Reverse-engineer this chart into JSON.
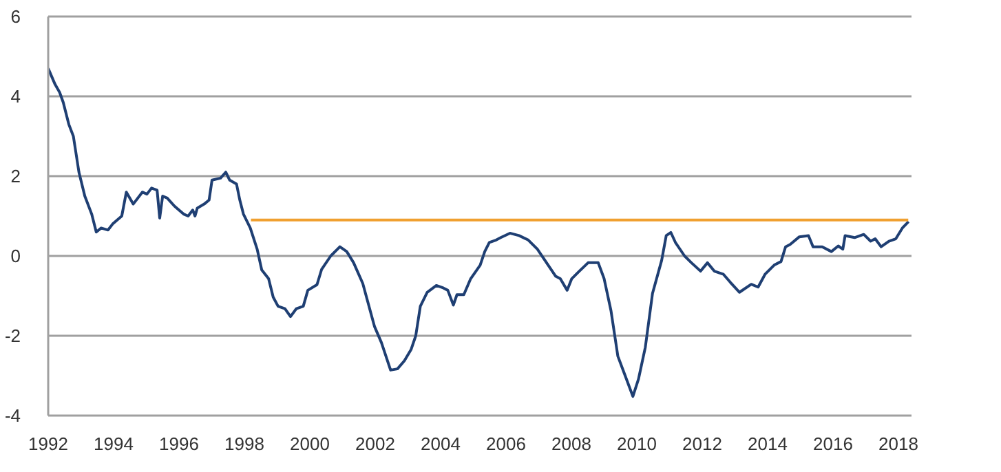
{
  "chart_data": {
    "type": "line",
    "xlim": [
      1992,
      2018.4
    ],
    "xticks": [
      1992,
      1994,
      1996,
      1998,
      2000,
      2002,
      2004,
      2006,
      2008,
      2010,
      2012,
      2014,
      2016,
      2018
    ],
    "ylim": [
      -4,
      6
    ],
    "yticks": [
      -4,
      -2,
      0,
      2,
      4,
      6
    ],
    "grid": "y",
    "marker": "none",
    "line_style": "solid",
    "series": [
      {
        "color": "#1f3f73",
        "x": [
          1992.0,
          1992.21,
          1992.35,
          1992.46,
          1992.63,
          1992.77,
          1992.94,
          1993.12,
          1993.33,
          1993.47,
          1993.62,
          1993.83,
          1993.97,
          1994.25,
          1994.39,
          1994.6,
          1994.88,
          1995.02,
          1995.16,
          1995.33,
          1995.41,
          1995.5,
          1995.64,
          1995.86,
          1996.14,
          1996.28,
          1996.42,
          1996.49,
          1996.56,
          1996.77,
          1996.92,
          1997.01,
          1997.27,
          1997.43,
          1997.55,
          1997.76,
          1997.86,
          1997.97,
          1998.18,
          1998.39,
          1998.53,
          1998.74,
          1998.88,
          1999.03,
          1999.24,
          1999.41,
          1999.59,
          1999.8,
          1999.94,
          2000.22,
          2000.36,
          2000.64,
          2000.92,
          2001.13,
          2001.34,
          2001.62,
          2001.98,
          2002.19,
          2002.47,
          2002.68,
          2002.89,
          2003.1,
          2003.24,
          2003.38,
          2003.59,
          2003.87,
          2004.08,
          2004.22,
          2004.39,
          2004.5,
          2004.71,
          2004.92,
          2005.21,
          2005.35,
          2005.49,
          2005.7,
          2005.84,
          2006.12,
          2006.4,
          2006.68,
          2006.96,
          2007.24,
          2007.52,
          2007.66,
          2007.87,
          2008.01,
          2008.22,
          2008.51,
          2008.82,
          2009.0,
          2009.21,
          2009.42,
          2009.63,
          2009.88,
          2010.05,
          2010.26,
          2010.48,
          2010.76,
          2010.9,
          2011.04,
          2011.18,
          2011.46,
          2011.67,
          2011.95,
          2012.16,
          2012.37,
          2012.65,
          2012.86,
          2013.14,
          2013.5,
          2013.71,
          2013.92,
          2014.2,
          2014.41,
          2014.55,
          2014.69,
          2014.97,
          2015.25,
          2015.39,
          2015.67,
          2015.95,
          2016.16,
          2016.3,
          2016.37,
          2016.66,
          2016.94,
          2017.15,
          2017.29,
          2017.47,
          2017.71,
          2017.92,
          2018.13,
          2018.31
        ],
        "values": [
          4.7,
          4.3,
          4.1,
          3.85,
          3.3,
          3.0,
          2.1,
          1.5,
          1.05,
          0.6,
          0.7,
          0.65,
          0.8,
          1.0,
          1.6,
          1.3,
          1.6,
          1.55,
          1.7,
          1.65,
          0.95,
          1.5,
          1.45,
          1.25,
          1.05,
          1.0,
          1.15,
          1.0,
          1.2,
          1.3,
          1.4,
          1.9,
          1.95,
          2.1,
          1.9,
          1.8,
          1.4,
          1.05,
          0.7,
          0.17,
          -0.35,
          -0.57,
          -1.03,
          -1.26,
          -1.32,
          -1.52,
          -1.32,
          -1.26,
          -0.86,
          -0.72,
          -0.34,
          0.0,
          0.23,
          0.11,
          -0.17,
          -0.69,
          -1.77,
          -2.17,
          -2.86,
          -2.83,
          -2.63,
          -2.34,
          -2.0,
          -1.26,
          -0.91,
          -0.74,
          -0.8,
          -0.86,
          -1.23,
          -0.97,
          -0.97,
          -0.57,
          -0.23,
          0.11,
          0.34,
          0.4,
          0.46,
          0.57,
          0.51,
          0.4,
          0.17,
          -0.17,
          -0.51,
          -0.57,
          -0.86,
          -0.57,
          -0.4,
          -0.17,
          -0.17,
          -0.57,
          -1.37,
          -2.51,
          -2.97,
          -3.52,
          -3.09,
          -2.29,
          -0.94,
          -0.11,
          0.51,
          0.59,
          0.34,
          0.0,
          -0.17,
          -0.38,
          -0.17,
          -0.38,
          -0.46,
          -0.66,
          -0.91,
          -0.71,
          -0.78,
          -0.46,
          -0.23,
          -0.14,
          0.23,
          0.29,
          0.48,
          0.51,
          0.23,
          0.23,
          0.11,
          0.25,
          0.17,
          0.51,
          0.46,
          0.54,
          0.37,
          0.43,
          0.23,
          0.37,
          0.43,
          0.71,
          0.86
        ]
      },
      {
        "color": "#f0a030",
        "x": [
          1998.2,
          2018.3
        ],
        "values": [
          0.9,
          0.9
        ]
      }
    ]
  }
}
